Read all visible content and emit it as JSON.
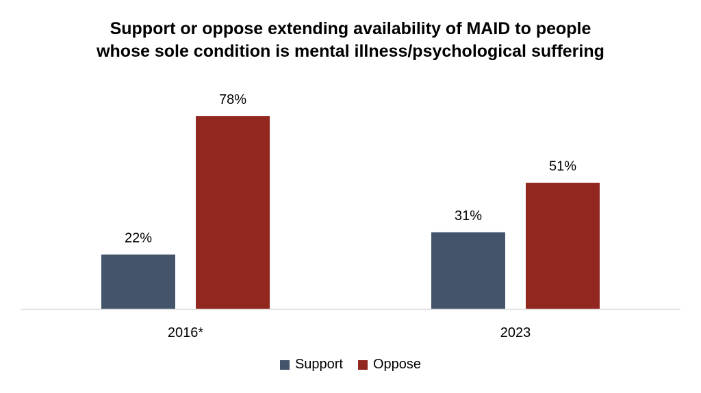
{
  "chart_data": {
    "type": "bar",
    "title": "Support or oppose extending availability of MAID to people whose sole condition is mental illness/psychological suffering",
    "title_lines": [
      "Support or oppose extending availability of MAID to people",
      "whose sole condition is mental illness/psychological suffering"
    ],
    "categories": [
      "2016*",
      "2023"
    ],
    "series": [
      {
        "name": "Support",
        "values": [
          22,
          31
        ],
        "labels": [
          "22%",
          "31%"
        ],
        "color": "#44546a"
      },
      {
        "name": "Oppose",
        "values": [
          78,
          51
        ],
        "labels": [
          "78%",
          "51%"
        ],
        "color": "#922720"
      }
    ],
    "xlabel": "",
    "ylabel": "",
    "ylim": [
      0,
      100
    ],
    "grid": false,
    "legend": "bottom",
    "axis_color": "#d9d9d9"
  }
}
